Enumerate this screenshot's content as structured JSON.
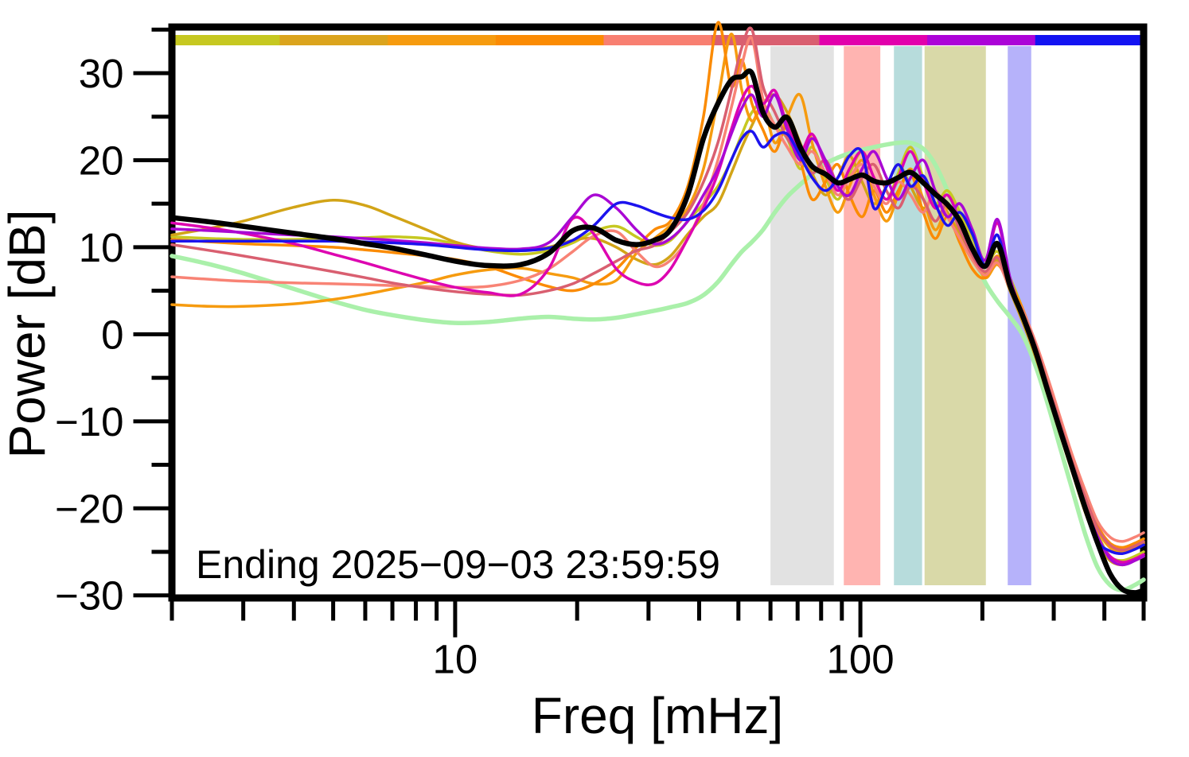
{
  "chart_data": {
    "type": "line",
    "title": "",
    "xlabel": "Freq [mHz]",
    "ylabel": "Power [dB]",
    "annotation": "Ending 2025−09−03 23:59:59",
    "x_scale": "log",
    "xlim": [
      2,
      500
    ],
    "ylim": [
      -30.3,
      35.3
    ],
    "grid": false,
    "legend_position": "none",
    "frame_color": "#000000",
    "background_color": "#ffffff",
    "x_axis": {
      "label": "Freq [mHz]",
      "ticks_major": [
        {
          "f": 10,
          "label": "10"
        },
        {
          "f": 100,
          "label": "100"
        }
      ],
      "ticks_minor": [
        2,
        3,
        4,
        5,
        6,
        7,
        8,
        9,
        20,
        30,
        40,
        50,
        60,
        70,
        80,
        90,
        200,
        300,
        400,
        500
      ]
    },
    "y_axis": {
      "label": "Power [dB]",
      "ticks_major": [
        {
          "v": -30,
          "label": "−30"
        },
        {
          "v": -20,
          "label": "−20"
        },
        {
          "v": -10,
          "label": "−10"
        },
        {
          "v": 0,
          "label": "0"
        },
        {
          "v": 10,
          "label": "10"
        },
        {
          "v": 20,
          "label": "20"
        },
        {
          "v": 30,
          "label": "30"
        }
      ],
      "ticks_minor": [
        -25,
        -15,
        -5,
        5,
        15,
        25,
        35
      ]
    },
    "top_bar": {
      "description": "horizontal color strip along top of plot, 9 equal log-frequency segments",
      "segments": [
        {
          "f_start": 2,
          "f_end": 3.69,
          "color": "#c6c821"
        },
        {
          "f_start": 3.69,
          "f_end": 6.82,
          "color": "#dba41d"
        },
        {
          "f_start": 6.82,
          "f_end": 12.59,
          "color": "#f69b0f"
        },
        {
          "f_start": 12.59,
          "f_end": 23.25,
          "color": "#fb8b04"
        },
        {
          "f_start": 23.25,
          "f_end": 42.9,
          "color": "#f87f71"
        },
        {
          "f_start": 42.9,
          "f_end": 79.2,
          "color": "#d95f70"
        },
        {
          "f_start": 79.2,
          "f_end": 146.2,
          "color": "#e200ac"
        },
        {
          "f_start": 146.2,
          "f_end": 270,
          "color": "#ac04d8"
        },
        {
          "f_start": 270,
          "f_end": 500,
          "color": "#1313f2"
        }
      ]
    },
    "shaded_bands": [
      {
        "f_start": 60,
        "f_end": 86,
        "color": "#e2e2e2"
      },
      {
        "f_start": 91,
        "f_end": 112,
        "color": "#ffb4b1"
      },
      {
        "f_start": 121,
        "f_end": 142,
        "color": "#b7dcdc"
      },
      {
        "f_start": 144,
        "f_end": 204,
        "color": "#d9d9a8"
      },
      {
        "f_start": 231,
        "f_end": 264,
        "color": "#b6b2fa"
      }
    ],
    "f_mHz": [
      2,
      2.5,
      3,
      4,
      5,
      6,
      7,
      8.5,
      10,
      12,
      14.5,
      17,
      19.5,
      22,
      25,
      28,
      31,
      34,
      37.5,
      41,
      44.5,
      48,
      51,
      54,
      57.5,
      61.5,
      66,
      71,
      76,
      82,
      88,
      94,
      101,
      108,
      116,
      124,
      133,
      143,
      153,
      164,
      176,
      189,
      203,
      218,
      234,
      251,
      270,
      290,
      311,
      334,
      359,
      385,
      413,
      443,
      476,
      500
    ],
    "series": [
      {
        "name": "series-palegreen",
        "color": "#aaf0aa",
        "width": 5.5,
        "values": [
          9.0,
          8.0,
          7.0,
          5.2,
          3.8,
          2.8,
          2.2,
          1.6,
          1.3,
          1.4,
          1.8,
          2.0,
          1.8,
          1.7,
          1.9,
          2.3,
          2.7,
          3.1,
          3.6,
          4.5,
          6.0,
          8.0,
          9.5,
          10.6,
          12.0,
          14.0,
          15.8,
          17.2,
          18.4,
          19.6,
          20.3,
          20.8,
          21.2,
          21.5,
          21.8,
          22.0,
          22.0,
          21.3,
          19.5,
          16.5,
          13.0,
          9.3,
          6.0,
          3.8,
          2.0,
          0.0,
          -3.5,
          -8.0,
          -13.0,
          -18.0,
          -23.0,
          -26.8,
          -28.8,
          -29.4,
          -28.8,
          -28.2
        ]
      },
      {
        "name": "series-yellowgreen",
        "color": "#c6c821",
        "width": 3.5,
        "values": [
          11.2,
          11.0,
          10.9,
          10.9,
          11.0,
          11.1,
          11.2,
          11.0,
          10.4,
          9.6,
          9.2,
          9.6,
          10.5,
          11.8,
          12.4,
          11.2,
          10.2,
          10.8,
          13.0,
          15.0,
          17.0,
          20.0,
          23.0,
          25.5,
          26.5,
          24.0,
          22.5,
          19.0,
          21.5,
          18.0,
          15.5,
          18.5,
          21.0,
          18.0,
          15.5,
          18.5,
          21.5,
          18.0,
          15.0,
          16.5,
          14.0,
          11.0,
          8.0,
          9.5,
          6.5,
          3.0,
          -1.0,
          -5.5,
          -10.0,
          -15.0,
          -19.5,
          -23.0,
          -25.5,
          -26.0,
          -25.5,
          -25.0
        ]
      },
      {
        "name": "series-gold",
        "color": "#d2a417",
        "width": 3.5,
        "values": [
          11.4,
          12.2,
          13.0,
          14.6,
          15.4,
          14.8,
          13.6,
          12.0,
          10.6,
          9.8,
          9.6,
          10.0,
          10.8,
          11.0,
          10.0,
          8.6,
          8.0,
          9.0,
          11.5,
          13.5,
          15.0,
          18.5,
          21.5,
          24.0,
          26.5,
          27.5,
          25.5,
          22.0,
          18.5,
          16.0,
          18.0,
          20.5,
          17.5,
          15.0,
          17.0,
          19.5,
          17.0,
          14.5,
          16.0,
          14.0,
          11.5,
          9.0,
          7.0,
          8.5,
          5.0,
          1.5,
          -2.5,
          -7.0,
          -11.5,
          -16.0,
          -20.5,
          -24.0,
          -26.0,
          -26.5,
          -26.0,
          -25.5
        ]
      },
      {
        "name": "series-orange",
        "color": "#f69b0f",
        "width": 3.5,
        "values": [
          3.4,
          3.2,
          3.2,
          3.5,
          4.0,
          4.6,
          5.2,
          6.0,
          6.8,
          7.4,
          7.6,
          7.0,
          6.5,
          5.8,
          6.2,
          9.3,
          11.0,
          12.5,
          14.5,
          19.0,
          27.0,
          34.5,
          28.0,
          24.5,
          26.5,
          22.0,
          25.0,
          27.5,
          22.0,
          17.0,
          14.0,
          17.0,
          20.0,
          16.0,
          13.0,
          16.0,
          19.0,
          15.5,
          12.0,
          14.5,
          12.5,
          9.5,
          6.5,
          8.0,
          5.5,
          2.5,
          -1.5,
          -6.0,
          -10.5,
          -15.0,
          -19.0,
          -22.5,
          -24.5,
          -25.0,
          -24.5,
          -24.0
        ]
      },
      {
        "name": "series-darkorange",
        "color": "#fb8b04",
        "width": 3.5,
        "values": [
          10.9,
          10.6,
          10.4,
          10.2,
          10.0,
          9.7,
          9.4,
          9.0,
          8.6,
          7.8,
          6.5,
          5.5,
          5.0,
          5.8,
          7.5,
          10.0,
          12.0,
          13.0,
          17.0,
          25.0,
          35.8,
          28.5,
          31.5,
          26.5,
          23.5,
          21.0,
          24.0,
          20.0,
          15.5,
          17.5,
          19.5,
          16.0,
          13.5,
          16.5,
          14.0,
          16.5,
          18.5,
          14.0,
          11.0,
          13.5,
          10.5,
          7.5,
          6.5,
          9.0,
          6.0,
          3.0,
          -1.0,
          -5.5,
          -10.0,
          -14.5,
          -18.5,
          -22.0,
          -24.0,
          -24.5,
          -24.0,
          -23.5
        ]
      },
      {
        "name": "series-salmon",
        "color": "#f88375",
        "width": 3.5,
        "values": [
          6.6,
          6.3,
          6.1,
          5.9,
          5.8,
          5.7,
          5.6,
          5.5,
          5.4,
          5.5,
          6.2,
          7.5,
          9.5,
          11.3,
          11.8,
          9.5,
          7.8,
          8.5,
          11.0,
          15.0,
          20.0,
          26.0,
          31.0,
          34.0,
          27.0,
          24.0,
          21.5,
          19.5,
          21.0,
          18.5,
          16.0,
          18.0,
          19.5,
          17.0,
          15.0,
          17.5,
          16.0,
          14.0,
          16.5,
          13.5,
          11.0,
          8.5,
          6.8,
          8.2,
          5.2,
          2.8,
          -0.8,
          -5.0,
          -9.5,
          -14.0,
          -18.0,
          -21.5,
          -23.3,
          -23.8,
          -23.3,
          -22.8
        ]
      },
      {
        "name": "series-rose",
        "color": "#d95f70",
        "width": 3.5,
        "values": [
          10.3,
          9.6,
          9.0,
          8.0,
          7.2,
          6.5,
          5.9,
          5.3,
          4.9,
          4.6,
          4.5,
          5.0,
          5.8,
          7.0,
          8.4,
          9.6,
          10.2,
          11.8,
          14.0,
          17.5,
          22.0,
          28.0,
          33.0,
          35.0,
          28.5,
          25.5,
          22.5,
          20.5,
          18.5,
          20.0,
          17.0,
          15.5,
          18.0,
          19.5,
          16.5,
          14.5,
          17.0,
          15.5,
          13.0,
          15.0,
          12.0,
          9.0,
          7.2,
          8.8,
          5.5,
          2.5,
          -1.2,
          -5.8,
          -10.2,
          -14.8,
          -18.8,
          -22.3,
          -24.2,
          -24.8,
          -24.3,
          -23.8
        ]
      },
      {
        "name": "series-magenta",
        "color": "#dd04b0",
        "width": 3.5,
        "values": [
          12.8,
          12.2,
          11.6,
          10.4,
          9.2,
          8.2,
          7.3,
          6.2,
          5.4,
          4.8,
          4.6,
          7.5,
          13.3,
          11.5,
          7.5,
          6.0,
          5.8,
          7.5,
          11.0,
          14.5,
          18.5,
          23.5,
          27.0,
          28.5,
          26.5,
          28.0,
          24.0,
          21.0,
          23.0,
          19.5,
          16.5,
          19.0,
          21.0,
          18.0,
          15.5,
          18.0,
          21.0,
          17.5,
          14.5,
          16.0,
          13.0,
          9.5,
          7.8,
          12.8,
          6.2,
          2.0,
          -2.0,
          -6.5,
          -11.0,
          -15.5,
          -20.0,
          -23.5,
          -25.5,
          -26.2,
          -25.8,
          -25.3
        ]
      },
      {
        "name": "series-purple",
        "color": "#a908d4",
        "width": 3.5,
        "values": [
          12.1,
          11.9,
          11.7,
          11.4,
          11.2,
          11.0,
          10.8,
          10.5,
          10.2,
          9.9,
          9.8,
          10.5,
          13.5,
          16.0,
          14.5,
          12.0,
          10.4,
          11.0,
          13.0,
          16.0,
          19.0,
          23.0,
          26.0,
          27.5,
          25.0,
          27.5,
          23.5,
          20.0,
          22.5,
          20.0,
          17.0,
          16.0,
          19.0,
          21.0,
          18.0,
          15.5,
          18.0,
          20.0,
          16.5,
          13.5,
          15.0,
          12.0,
          8.5,
          13.2,
          6.5,
          2.2,
          -1.8,
          -6.2,
          -10.8,
          -15.2,
          -19.8,
          -23.2,
          -25.8,
          -26.5,
          -26.0,
          -25.5
        ]
      },
      {
        "name": "series-blue",
        "color": "#1c13ee",
        "width": 3.5,
        "values": [
          10.7,
          10.7,
          10.7,
          10.7,
          10.7,
          10.6,
          10.5,
          10.3,
          10.0,
          9.7,
          9.6,
          9.9,
          10.8,
          12.5,
          15.0,
          14.8,
          14.0,
          13.4,
          13.2,
          14.2,
          16.5,
          20.0,
          22.5,
          23.3,
          21.5,
          22.8,
          23.0,
          20.5,
          18.0,
          16.5,
          18.0,
          20.5,
          20.9,
          14.5,
          17.0,
          19.5,
          17.0,
          18.2,
          15.0,
          12.5,
          14.0,
          11.5,
          8.0,
          11.4,
          5.5,
          2.0,
          -2.2,
          -6.8,
          -11.2,
          -15.8,
          -20.2,
          -23.8,
          -24.9,
          -25.2,
          -24.7,
          -24.2
        ]
      },
      {
        "name": "series-black-mean",
        "color": "#000000",
        "width": 6.5,
        "values": [
          13.4,
          12.9,
          12.4,
          11.6,
          11.0,
          10.4,
          9.9,
          9.1,
          8.4,
          7.9,
          8.0,
          9.3,
          11.9,
          12.2,
          10.8,
          10.3,
          10.8,
          12.0,
          16.0,
          22.5,
          26.5,
          29.2,
          29.6,
          30.0,
          25.5,
          23.8,
          24.9,
          21.5,
          19.3,
          18.4,
          17.4,
          17.8,
          18.3,
          17.6,
          17.4,
          18.0,
          18.6,
          17.4,
          16.1,
          14.9,
          13.0,
          9.8,
          7.8,
          10.4,
          5.6,
          2.2,
          -1.8,
          -6.5,
          -11.0,
          -15.5,
          -20.0,
          -24.0,
          -27.5,
          -29.3,
          -29.7,
          -29.4
        ]
      }
    ]
  }
}
